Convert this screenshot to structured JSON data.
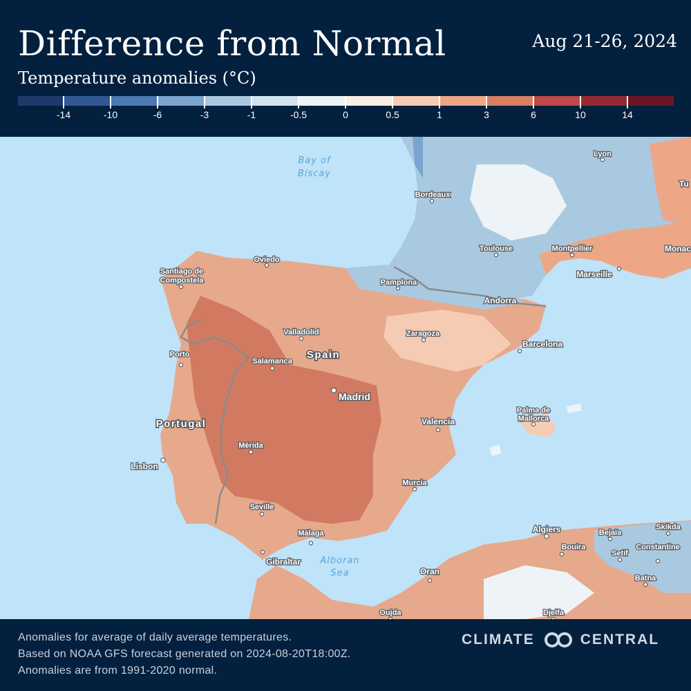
{
  "header": {
    "title": "Difference from Normal",
    "date_range": "Aug 21-26, 2024",
    "subtitle": "Temperature anomalies (°C)"
  },
  "legend": {
    "ticks": [
      "-14",
      "-10",
      "-6",
      "-3",
      "-1",
      "-0.5",
      "0",
      "0.5",
      "1",
      "3",
      "6",
      "10",
      "14"
    ],
    "colors": [
      "#1d3a6b",
      "#2f5894",
      "#4d79b3",
      "#7aa5cf",
      "#a9c9e0",
      "#d1e3ef",
      "#eef3f7",
      "#fbede4",
      "#f6cbb3",
      "#eda787",
      "#d87e63",
      "#bd4a48",
      "#952a33",
      "#6b1627"
    ]
  },
  "map": {
    "cities": [
      {
        "name": "Lyon"
      },
      {
        "name": "Bordeaux"
      },
      {
        "name": "Toulouse"
      },
      {
        "name": "Montpellier"
      },
      {
        "name": "Marseille"
      },
      {
        "name": "Monaco"
      },
      {
        "name": "Oviedo"
      },
      {
        "name": "Santiago de",
        "name2": "Compostela"
      },
      {
        "name": "Pamplona"
      },
      {
        "name": "Andorra"
      },
      {
        "name": "Valladolid"
      },
      {
        "name": "Zaragoza"
      },
      {
        "name": "Barcelona"
      },
      {
        "name": "Porto"
      },
      {
        "name": "Salamanca"
      },
      {
        "name": "Madrid"
      },
      {
        "name": "Palma de",
        "name2": "Mallorca"
      },
      {
        "name": "Valencia"
      },
      {
        "name": "Mérida"
      },
      {
        "name": "Lisbon"
      },
      {
        "name": "Murcia"
      },
      {
        "name": "Seville"
      },
      {
        "name": "Málaga"
      },
      {
        "name": "Gibraltar"
      },
      {
        "name": "Algiers"
      },
      {
        "name": "Bejaïa"
      },
      {
        "name": "Skikda"
      },
      {
        "name": "Bouira"
      },
      {
        "name": "Setif"
      },
      {
        "name": "Constantine"
      },
      {
        "name": "Batna"
      },
      {
        "name": "Oran"
      },
      {
        "name": "Oujda"
      },
      {
        "name": "Djelfa"
      },
      {
        "name": "Tu"
      }
    ],
    "countries": [
      "Spain",
      "Portugal"
    ],
    "water": [
      {
        "line1": "Bay of",
        "line2": "Biscay"
      },
      {
        "line1": "Alboran",
        "line2": "Sea"
      }
    ],
    "anomaly_color": "#e39a7c"
  },
  "footer": {
    "note1": "Anomalies for average of daily average temperatures.",
    "note2": "Based on NOAA GFS forecast generated on 2024-08-20T18:00Z.",
    "note3": "Anomalies are from 1991-2020 normal.",
    "brand_left": "CLIMATE",
    "brand_right": "CENTRAL"
  }
}
